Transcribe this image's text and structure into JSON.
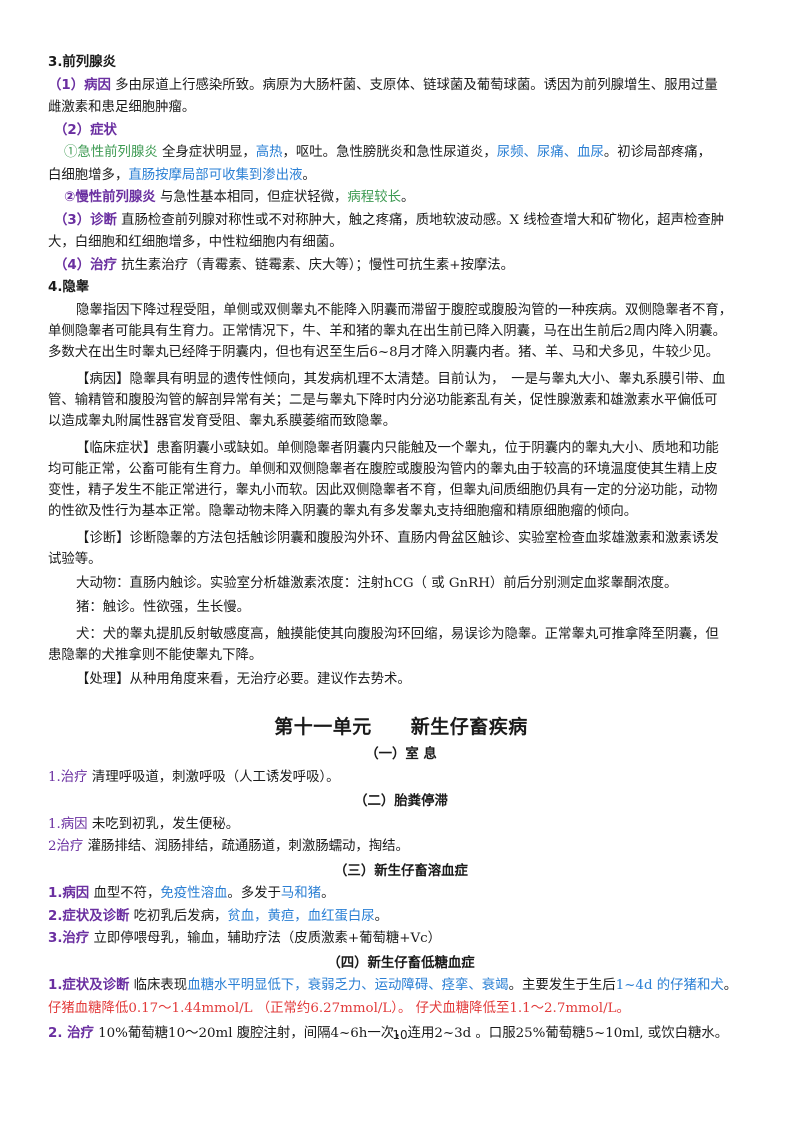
{
  "s3": {
    "title": "3.前列腺炎",
    "cause_label": "（1）病因",
    "cause_text": "多由尿道上行感染所致。病原为大肠杆菌、支原体、链球菌及葡萄球菌。诱因为前列腺增生、服用过量",
    "cause_text2": "雌激素和患足细胞肿瘤。",
    "symptom_label": "（2）症状",
    "acute_label": "①急性前列腺炎",
    "acute_a": "全身症状明显，",
    "acute_hl1": "高热",
    "acute_b": "，呕吐。急性膀胱炎和急性尿道炎，",
    "acute_hl2": "尿频、尿痛、血尿",
    "acute_c": "。初诊局部疼痛，",
    "acute_l2a": "白细胞增多，",
    "acute_hl3": "直肠按摩局部可收集到渗出液",
    "acute_l2b": "。",
    "chronic_label": "②慢性前列腺炎",
    "chronic_a": "与急性基本相同，但症状轻微，",
    "chronic_hl": "病程较长",
    "chronic_b": "。",
    "diag_label": "（3）诊断",
    "diag_text": "直肠检查前列腺对称性或不对称肿大，触之疼痛，质地软波动感。X 线检查增大和矿物化，超声检查肿",
    "diag_text2": "大，白细胞和红细胞增多，中性粒细胞内有细菌。",
    "treat_label": "（4）治疗",
    "treat_text": "抗生素治疗（青霉素、链霉素、庆大等）；慢性可抗生素+按摩法。"
  },
  "s4": {
    "title": "4.隐睾",
    "intro1": "隐睾指因下降过程受阻，单侧或双侧睾丸不能降入阴囊而滞留于腹腔或腹股沟管的一种疾病。双侧隐睾者不育，",
    "intro2": "单侧隐睾者可能具有生育力。正常情况下，牛、羊和猪的睾丸在出生前已降入阴囊，马在出生前后2周内降入阴囊。",
    "intro3": "多数犬在出生时睾丸已经降于阴囊内，但也有迟至生后6~8月才降入阴囊内者。猪、羊、马和犬多见，牛较少见。",
    "cause1": "【病因】隐睾具有明显的遗传性倾向，其发病机理不太清楚。目前认为，　一是与睾丸大小、睾丸系膜引带、血",
    "cause2": "管、输精管和腹股沟管的解剖异常有关；二是与睾丸下降时内分泌功能紊乱有关，促性腺激素和雄激素水平偏低可",
    "cause3": "以造成睾丸附属性器官发育受阻、睾丸系膜萎缩而致隐睾。",
    "clin1": "【临床症状】患畜阴囊小或缺如。单侧隐睾者阴囊内只能触及一个睾丸，位于阴囊内的睾丸大小、质地和功能",
    "clin2": "均可能正常，公畜可能有生育力。单侧和双侧隐睾者在腹腔或腹股沟管内的睾丸由于较高的环境温度使其生精上皮",
    "clin3": "变性，精子发生不能正常进行，睾丸小而软。因此双侧隐睾者不育，但睾丸间质细胞仍具有一定的分泌功能，动物",
    "clin4": "的性欲及性行为基本正常。隐睾动物未降入阴囊的睾丸有多发睾丸支持细胞瘤和精原细胞瘤的倾向。",
    "diag1": "【诊断】诊断隐睾的方法包括触诊阴囊和腹股沟外环、直肠内骨盆区触诊、实验室检查血浆雄激素和激素诱发",
    "diag2": "试验等。",
    "big": "大动物：直肠内触诊。实验室分析雄激素浓度：注射hCG（ 或 GnRH）前后分别测定血浆睾酮浓度。",
    "pig": "猪：触诊。性欲强，生长慢。",
    "dog1": "犬：犬的睾丸提肌反射敏感度高，触摸能使其向腹股沟环回缩，易误诊为隐睾。正常睾丸可推拿降至阴囊，但",
    "dog2": "患隐睾的犬推拿则不能使睾丸下降。",
    "treat": "【处理】从种用角度来看，无治疗必要。建议作去势术。"
  },
  "unit": {
    "title": "第十一单元　　新生仔畜疾病"
  },
  "a": {
    "title": "（一）室 息",
    "label": "1.治疗",
    "text": "清理呼吸道，刺激呼吸（人工诱发呼吸）。"
  },
  "b": {
    "title": "（二）胎粪停滞",
    "l1_label": "1.病因",
    "l1_text": "未吃到初乳，发生便秘。",
    "l2_label": "2治疗",
    "l2_text": "灌肠排结、润肠排结，疏通肠道，刺激肠蠕动，掏结。"
  },
  "c": {
    "title": "（三）新生仔畜溶血症",
    "l1_label": "1.病因",
    "l1_a": "血型不符，",
    "l1_hl1": "免疫性溶血",
    "l1_b": "。多发于",
    "l1_hl2": "马和猪",
    "l1_c": "。",
    "l2_label": "2.症状及诊断",
    "l2_a": "吃初乳后发病，",
    "l2_hl": "贫血，黄疸，血红蛋白尿",
    "l2_b": "。",
    "l3_label": "3.治疗",
    "l3_text": "立即停喂母乳，输血，辅助疗法（皮质激素+葡萄糖+Vc）"
  },
  "d": {
    "title": "（四）新生仔畜低糖血症",
    "l1_label": "1.症状及诊断",
    "l1_a": "临床表现",
    "l1_hl1": "血糖水平明显低下，衰弱乏力、运动障碍、痉挛、衰竭",
    "l1_b": "。主要发生于生后",
    "l1_hl2": "1~4d 的仔猪和犬",
    "l1_c": "。",
    "l1_line2": "仔猪血糖降低0.17～1.44mmol/L （正常约6.27mmol/L）。 仔犬血糖降低至1.1～2.7mmol/L。",
    "l2_label": "2. 治疗",
    "l2_text": "10%葡萄糖10～20ml 腹腔注射，间隔4~6h一次，连用2~3d 。口服25%葡萄糖5~10ml, 或饮白糖水。"
  },
  "page_number": "10"
}
